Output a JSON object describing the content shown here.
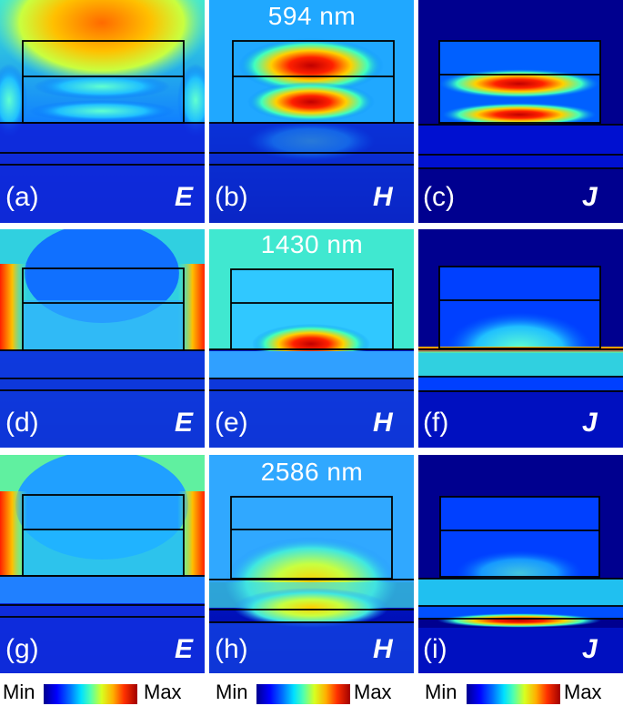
{
  "wavelengths": [
    "594 nm",
    "1430 nm",
    "2586 nm"
  ],
  "panels": [
    {
      "id": "a",
      "label": "(a)",
      "field": "E"
    },
    {
      "id": "b",
      "label": "(b)",
      "field": "H"
    },
    {
      "id": "c",
      "label": "(c)",
      "field": "J"
    },
    {
      "id": "d",
      "label": "(d)",
      "field": "E"
    },
    {
      "id": "e",
      "label": "(e)",
      "field": "H"
    },
    {
      "id": "f",
      "label": "(f)",
      "field": "J"
    },
    {
      "id": "g",
      "label": "(g)",
      "field": "E"
    },
    {
      "id": "h",
      "label": "(h)",
      "field": "H"
    },
    {
      "id": "i",
      "label": "(i)",
      "field": "J"
    }
  ],
  "colorbar": {
    "min_label": "Min",
    "max_label": "Max",
    "colors": [
      "#00008f",
      "#0000ff",
      "#0070ff",
      "#00e0ff",
      "#50ffb0",
      "#d8ff20",
      "#ffb000",
      "#ff3000",
      "#a00000"
    ]
  }
}
